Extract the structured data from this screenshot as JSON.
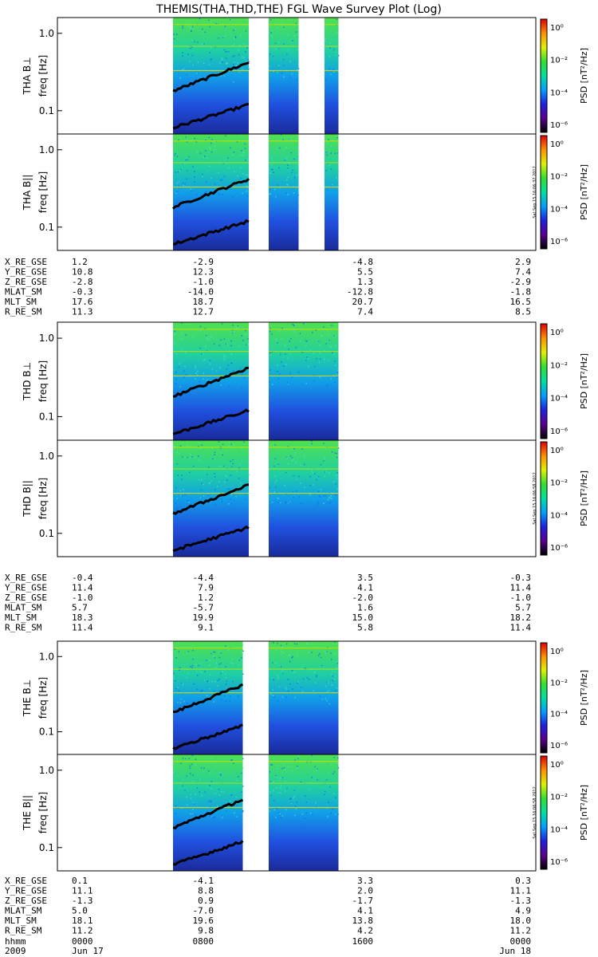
{
  "title": "THEMIS(THA,THD,THE) FGL Wave Survey Plot (Log)",
  "colorbar": {
    "label": "PSD [nT²/Hz]",
    "ticks": [
      "10⁰",
      "10⁻²",
      "10⁻⁴",
      "10⁻⁶"
    ],
    "stamp": "Sat Sep 15 16:06:37 2012",
    "stamp2": "Sat Sep 15 16:06:58 2012",
    "colors": [
      "#000000",
      "#5a0090",
      "#2020e0",
      "#00a0ff",
      "#00e0a0",
      "#30e030",
      "#e0f000",
      "#ff9000",
      "#e00000"
    ]
  },
  "time_axis": {
    "row_labels": [
      "hhmm",
      "2009"
    ],
    "ticks": [
      {
        "top": "0000",
        "bottom": "Jun 17"
      },
      {
        "top": "0800",
        "bottom": ""
      },
      {
        "top": "1600",
        "bottom": ""
      },
      {
        "top": "0000",
        "bottom": "Jun 18"
      }
    ]
  },
  "ephem_labels": [
    "X_RE_GSE",
    "Y_RE_GSE",
    "Z_RE_GSE",
    "MLAT_SM",
    "MLT_SM",
    "R_RE_SM"
  ],
  "chart_data": [
    {
      "type": "heatmap",
      "probe": "THA",
      "ylabels": [
        "THA B⊥",
        "THA B||"
      ],
      "yunit": "freq [Hz]",
      "yscale": "log",
      "yticks": [
        "1.0",
        "0.1"
      ],
      "ylim": [
        0.05,
        1.6
      ],
      "data_intervals_hours": [
        [
          5.8,
          9.6
        ],
        [
          10.6,
          12.1
        ],
        [
          13.4,
          14.1
        ]
      ],
      "ephemeris": [
        [
          "1.2",
          "-2.9",
          "-4.8",
          "2.9"
        ],
        [
          "10.8",
          "12.3",
          "5.5",
          "7.4"
        ],
        [
          "-2.8",
          "-1.0",
          "1.3",
          "-2.9"
        ],
        [
          "-0.3",
          "-14.0",
          "-12.8",
          "-1.8"
        ],
        [
          "17.6",
          "18.7",
          "20.7",
          "16.5"
        ],
        [
          "11.3",
          "12.7",
          "7.4",
          "8.5"
        ]
      ]
    },
    {
      "type": "heatmap",
      "probe": "THD",
      "ylabels": [
        "THD B⊥",
        "THD B||"
      ],
      "yunit": "freq [Hz]",
      "yscale": "log",
      "yticks": [
        "1.0",
        "0.1"
      ],
      "ylim": [
        0.05,
        1.6
      ],
      "data_intervals_hours": [
        [
          5.8,
          9.6
        ],
        [
          10.6,
          14.1
        ]
      ],
      "ephemeris": [
        [
          "-0.4",
          "-4.4",
          "3.5",
          "-0.3"
        ],
        [
          "11.4",
          "7.9",
          "4.1",
          "11.4"
        ],
        [
          "-1.0",
          "1.2",
          "-2.0",
          "-1.0"
        ],
        [
          "5.7",
          "-5.7",
          "1.6",
          "5.7"
        ],
        [
          "18.3",
          "19.9",
          "15.0",
          "18.2"
        ],
        [
          "11.4",
          "9.1",
          "5.8",
          "11.4"
        ]
      ]
    },
    {
      "type": "heatmap",
      "probe": "THE",
      "ylabels": [
        "THE B⊥",
        "THE B||"
      ],
      "yunit": "freq [Hz]",
      "yscale": "log",
      "yticks": [
        "1.0",
        "0.1"
      ],
      "ylim": [
        0.05,
        1.6
      ],
      "data_intervals_hours": [
        [
          5.8,
          9.3
        ],
        [
          10.6,
          14.1
        ]
      ],
      "ephemeris": [
        [
          "0.1",
          "-4.1",
          "3.3",
          "0.3"
        ],
        [
          "11.1",
          "8.8",
          "2.0",
          "11.1"
        ],
        [
          "-1.3",
          "0.9",
          "-1.7",
          "-1.3"
        ],
        [
          "5.0",
          "-7.0",
          "4.1",
          "4.9"
        ],
        [
          "18.1",
          "19.6",
          "13.8",
          "18.0"
        ],
        [
          "11.2",
          "9.8",
          "4.2",
          "11.2"
        ]
      ]
    }
  ]
}
